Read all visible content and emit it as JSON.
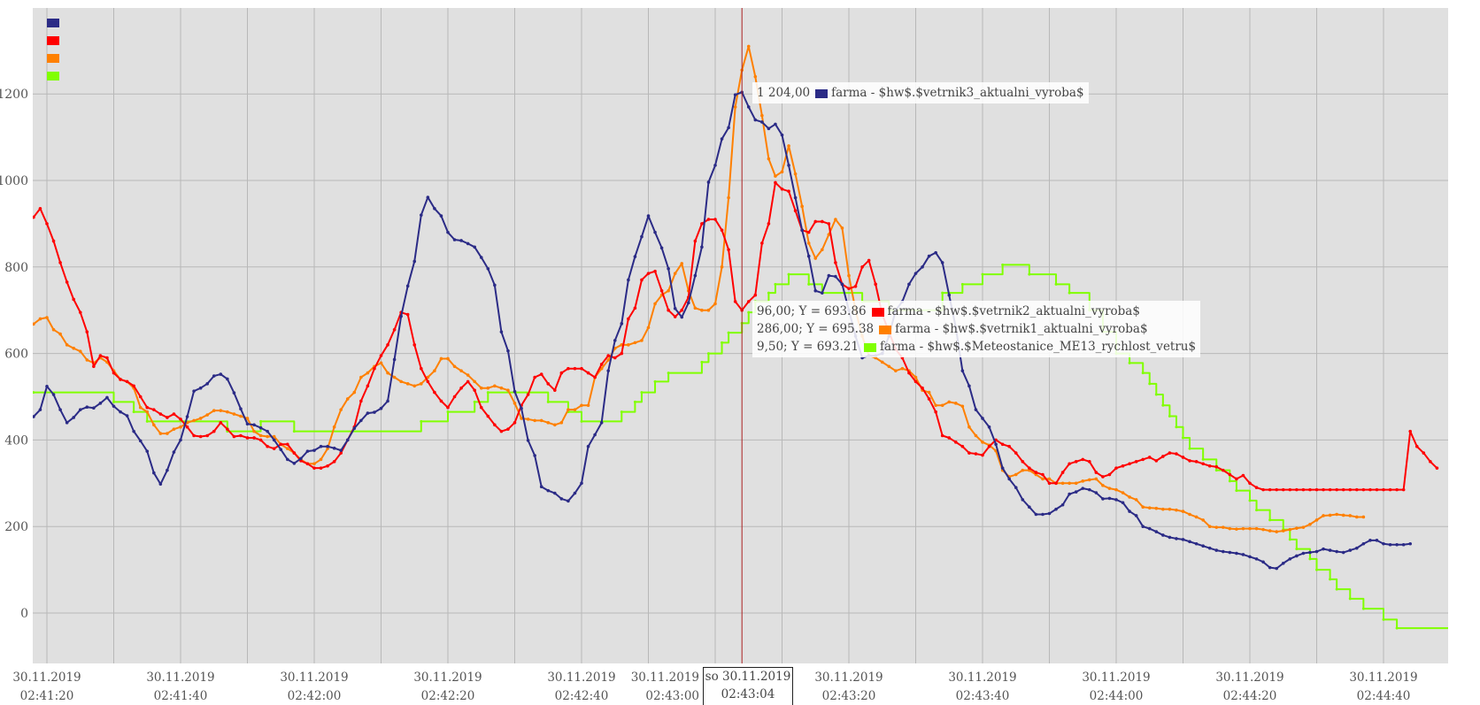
{
  "chart_data": {
    "type": "line",
    "title": "",
    "xlabel": "",
    "ylabel": "",
    "x_unit": "seconds since 30.11.2019 02:41:20",
    "xlim": [
      -2,
      211
    ],
    "ylim": [
      -117,
      1400
    ],
    "y_ticks": [
      "1200",
      "1000",
      "800",
      "600",
      "400",
      "200",
      "0"
    ],
    "y_tick_values": [
      1200,
      1000,
      800,
      600,
      400,
      200,
      0
    ],
    "x_ticks": [
      {
        "t": 0,
        "date": "30.11.2019",
        "time": "02:41:20"
      },
      {
        "t": 20,
        "date": "30.11.2019",
        "time": "02:41:40"
      },
      {
        "t": 40,
        "date": "30.11.2019",
        "time": "02:42:00"
      },
      {
        "t": 60,
        "date": "30.11.2019",
        "time": "02:42:20"
      },
      {
        "t": 80,
        "date": "30.11.2019",
        "time": "02:42:40"
      },
      {
        "t": 100,
        "date": "30.11.2019",
        "time": "02:43:00"
      },
      {
        "t": 120,
        "date": "30.11.2019",
        "time": "02:43:20"
      },
      {
        "t": 140,
        "date": "30.11.2019",
        "time": "02:43:40"
      },
      {
        "t": 160,
        "date": "30.11.2019",
        "time": "02:44:00"
      },
      {
        "t": 180,
        "date": "30.11.2019",
        "time": "02:44:20"
      },
      {
        "t": 200,
        "date": "30.11.2019",
        "time": "02:44:40"
      }
    ],
    "grid": true,
    "legend": "top-left",
    "series": [
      {
        "name": "farma - $hw$.$vetrnik3_aktualni_vyroba$",
        "color": "#2b2b86",
        "start": -2,
        "markers": true,
        "values": [
          454,
          470,
          524,
          505,
          470,
          440,
          452,
          470,
          476,
          474,
          485,
          498,
          478,
          465,
          456,
          420,
          398,
          374,
          324,
          298,
          330,
          372,
          400,
          454,
          513,
          520,
          530,
          548,
          552,
          541,
          509,
          472,
          437,
          435,
          428,
          420,
          400,
          378,
          355,
          346,
          357,
          374,
          376,
          385,
          385,
          381,
          376,
          400,
          427,
          445,
          462,
          464,
          473,
          490,
          586,
          686,
          756,
          813,
          920,
          961,
          935,
          918,
          880,
          863,
          861,
          854,
          846,
          822,
          796,
          758,
          650,
          606,
          512,
          473,
          399,
          364,
          292,
          283,
          277,
          264,
          259,
          277,
          300,
          385,
          412,
          440,
          560,
          630,
          669,
          770,
          824,
          870,
          918,
          880,
          844,
          796,
          704,
          684,
          717,
          780,
          846,
          996,
          1035,
          1096,
          1122,
          1198,
          1204,
          1170,
          1140,
          1135,
          1120,
          1130,
          1105,
          1035,
          960,
          885,
          825,
          745,
          740,
          780,
          778,
          760,
          700,
          640,
          590,
          595,
          595,
          600,
          640,
          700,
          720,
          760,
          785,
          800,
          825,
          833,
          810,
          735,
          660,
          560,
          525,
          470,
          450,
          430,
          390,
          335,
          310,
          290,
          262,
          245,
          228,
          228,
          230,
          240,
          250,
          275,
          280,
          288,
          285,
          278,
          264,
          265,
          262,
          255,
          235,
          225,
          200,
          195,
          188,
          180,
          175,
          172,
          170,
          165,
          160,
          155,
          150,
          145,
          142,
          140,
          138,
          135,
          130,
          125,
          118,
          105,
          103,
          115,
          125,
          132,
          138,
          140,
          142,
          148,
          145,
          142,
          140,
          145,
          150,
          160,
          168,
          168,
          160,
          158,
          158,
          158,
          160
        ]
      },
      {
        "name": "farma - $hw$.$vetrnik2_aktualni_vyroba$",
        "color": "#ff0000",
        "start": -2,
        "markers": true,
        "values": [
          915,
          935,
          900,
          860,
          810,
          765,
          725,
          695,
          650,
          570,
          595,
          590,
          555,
          540,
          535,
          525,
          500,
          475,
          470,
          460,
          452,
          460,
          448,
          430,
          410,
          408,
          410,
          420,
          440,
          425,
          408,
          410,
          405,
          405,
          400,
          385,
          380,
          390,
          390,
          370,
          352,
          345,
          335,
          335,
          340,
          350,
          370,
          400,
          430,
          490,
          525,
          565,
          595,
          620,
          655,
          695,
          690,
          620,
          565,
          535,
          510,
          490,
          475,
          500,
          520,
          535,
          515,
          475,
          455,
          435,
          420,
          425,
          440,
          480,
          505,
          545,
          552,
          530,
          515,
          555,
          565,
          565,
          565,
          555,
          545,
          575,
          595,
          590,
          600,
          680,
          705,
          770,
          785,
          790,
          745,
          700,
          685,
          700,
          730,
          860,
          900,
          910,
          910,
          885,
          840,
          720,
          700,
          720,
          735,
          855,
          900,
          995,
          980,
          975,
          930,
          885,
          880,
          905,
          905,
          900,
          810,
          760,
          750,
          755,
          800,
          815,
          760,
          690,
          650,
          610,
          590,
          555,
          535,
          520,
          495,
          465,
          410,
          405,
          395,
          385,
          370,
          368,
          365,
          385,
          400,
          390,
          385,
          370,
          350,
          335,
          325,
          320,
          300,
          300,
          325,
          345,
          350,
          355,
          350,
          325,
          315,
          320,
          335,
          340,
          345,
          350,
          355,
          360,
          352,
          362,
          370,
          368,
          360,
          352,
          350,
          345,
          340,
          338,
          330,
          320,
          310,
          318,
          300,
          290,
          285,
          285,
          285,
          285,
          285,
          285,
          285,
          285,
          285,
          285,
          285,
          285,
          285,
          285,
          285,
          285,
          285,
          285,
          285,
          285,
          285,
          285,
          420,
          385,
          370,
          350,
          335
        ]
      },
      {
        "name": "farma - $hw$.$vetrnik1_aktualni_vyroba$",
        "color": "#ff8000",
        "start": -2,
        "markers": true,
        "values": [
          668,
          680,
          683,
          655,
          645,
          620,
          612,
          605,
          585,
          578,
          590,
          580,
          560,
          540,
          535,
          520,
          475,
          465,
          435,
          415,
          415,
          425,
          430,
          440,
          445,
          450,
          458,
          468,
          468,
          465,
          460,
          455,
          450,
          420,
          410,
          408,
          408,
          390,
          380,
          370,
          355,
          345,
          345,
          355,
          380,
          430,
          470,
          495,
          510,
          545,
          555,
          570,
          578,
          555,
          545,
          535,
          530,
          525,
          530,
          545,
          560,
          588,
          588,
          570,
          560,
          550,
          535,
          520,
          520,
          525,
          520,
          515,
          485,
          450,
          448,
          445,
          445,
          440,
          435,
          440,
          470,
          470,
          480,
          480,
          545,
          565,
          585,
          612,
          620,
          620,
          625,
          630,
          660,
          715,
          735,
          745,
          785,
          808,
          745,
          705,
          700,
          700,
          715,
          800,
          960,
          1170,
          1255,
          1310,
          1240,
          1150,
          1050,
          1010,
          1020,
          1080,
          1015,
          940,
          855,
          820,
          840,
          875,
          910,
          890,
          780,
          700,
          640,
          595,
          590,
          580,
          570,
          560,
          565,
          560,
          545,
          515,
          510,
          480,
          480,
          488,
          485,
          478,
          430,
          410,
          395,
          388,
          375,
          330,
          315,
          320,
          330,
          330,
          320,
          310,
          310,
          300,
          300,
          300,
          300,
          305,
          308,
          310,
          295,
          288,
          285,
          278,
          268,
          262,
          245,
          243,
          242,
          240,
          240,
          238,
          235,
          228,
          222,
          215,
          200,
          198,
          198,
          195,
          194,
          195,
          195,
          195,
          193,
          190,
          188,
          190,
          193,
          196,
          198,
          205,
          215,
          225,
          226,
          228,
          226,
          225,
          222,
          222
        ]
      },
      {
        "name": "farma - $hw$.$Meteostanice_ME13_rychlost_vetru$",
        "color": "#80ff00",
        "markers": false,
        "steps": [
          [
            -2,
            510
          ],
          [
            10,
            488
          ],
          [
            13,
            465
          ],
          [
            15,
            443
          ],
          [
            27,
            420
          ],
          [
            32,
            443
          ],
          [
            37,
            420
          ],
          [
            56,
            443
          ],
          [
            60,
            465
          ],
          [
            64,
            488
          ],
          [
            66,
            510
          ],
          [
            75,
            488
          ],
          [
            78,
            465
          ],
          [
            80,
            443
          ],
          [
            86,
            465
          ],
          [
            88,
            488
          ],
          [
            89,
            510
          ],
          [
            91,
            535
          ],
          [
            93,
            555
          ],
          [
            98,
            580
          ],
          [
            99,
            600
          ],
          [
            101,
            625
          ],
          [
            102,
            648
          ],
          [
            104,
            670
          ],
          [
            105,
            695
          ],
          [
            106,
            720
          ],
          [
            108,
            740
          ],
          [
            109,
            760
          ],
          [
            111,
            783
          ],
          [
            114,
            760
          ],
          [
            116,
            740
          ],
          [
            122,
            720
          ],
          [
            126,
            700
          ],
          [
            134,
            740
          ],
          [
            137,
            760
          ],
          [
            140,
            783
          ],
          [
            143,
            805
          ],
          [
            147,
            783
          ],
          [
            151,
            760
          ],
          [
            153,
            740
          ],
          [
            156,
            700
          ],
          [
            158,
            650
          ],
          [
            160,
            600
          ],
          [
            162,
            578
          ],
          [
            164,
            555
          ],
          [
            165,
            530
          ],
          [
            166,
            505
          ],
          [
            167,
            480
          ],
          [
            168,
            455
          ],
          [
            169,
            430
          ],
          [
            170,
            405
          ],
          [
            171,
            380
          ],
          [
            173,
            355
          ],
          [
            175,
            330
          ],
          [
            177,
            305
          ],
          [
            178,
            283
          ],
          [
            180,
            260
          ],
          [
            181,
            238
          ],
          [
            183,
            215
          ],
          [
            185,
            193
          ],
          [
            186,
            170
          ],
          [
            187,
            148
          ],
          [
            189,
            125
          ],
          [
            190,
            100
          ],
          [
            192,
            78
          ],
          [
            193,
            55
          ],
          [
            195,
            33
          ],
          [
            197,
            10
          ],
          [
            200,
            -15
          ],
          [
            202,
            -35
          ],
          [
            211,
            -35
          ]
        ]
      }
    ]
  },
  "cursor": {
    "label_day": "so 30.11.2019",
    "label_time": "02:43:04",
    "t": 104,
    "color": "#aa2222"
  },
  "tooltips": {
    "top": {
      "value": "1 204,00",
      "series": "farma - $hw$.$vetrnik3_aktualni_vyroba$"
    },
    "rows": [
      {
        "value": "96,00; Y = 693.86",
        "series": "farma - $hw$.$vetrnik2_aktualni_vyroba$"
      },
      {
        "value": "286,00; Y = 695.38",
        "series": "farma - $hw$.$vetrnik1_aktualni_vyroba$"
      },
      {
        "value": "9,50; Y = 693.21",
        "series": "farma - $hw$.$Meteostanice_ME13_rychlost_vetru$"
      }
    ]
  }
}
